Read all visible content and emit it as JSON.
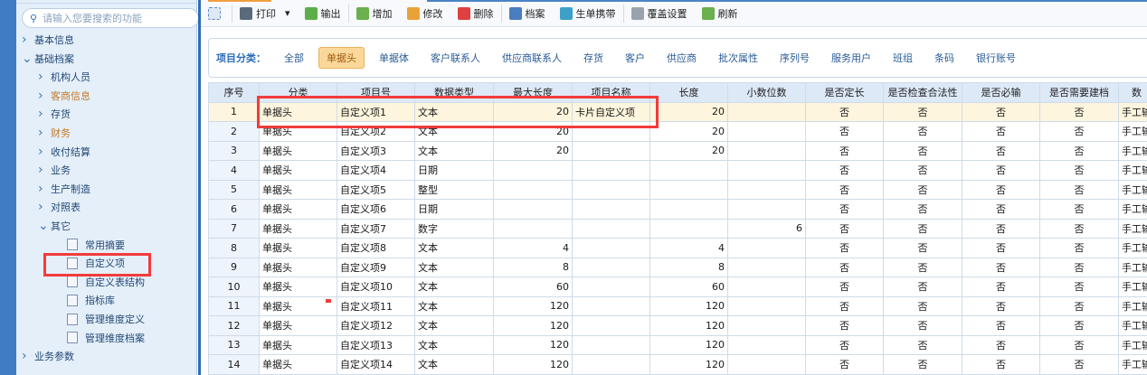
{
  "sidebar": {
    "search_placeholder": "请输入您要搜索的功能",
    "items": [
      {
        "label": "基本信息",
        "level": 0,
        "type": "collapsed"
      },
      {
        "label": "基础档案",
        "level": 0,
        "type": "expanded"
      },
      {
        "label": "机构人员",
        "level": 1,
        "type": "collapsed"
      },
      {
        "label": "客商信息",
        "level": 1,
        "type": "collapsed",
        "highlight": true
      },
      {
        "label": "存货",
        "level": 1,
        "type": "collapsed"
      },
      {
        "label": "财务",
        "level": 1,
        "type": "collapsed",
        "highlight": true
      },
      {
        "label": "收付结算",
        "level": 1,
        "type": "collapsed"
      },
      {
        "label": "业务",
        "level": 1,
        "type": "collapsed"
      },
      {
        "label": "生产制造",
        "level": 1,
        "type": "collapsed"
      },
      {
        "label": "对照表",
        "level": 1,
        "type": "collapsed"
      },
      {
        "label": "其它",
        "level": 1,
        "type": "expanded"
      },
      {
        "label": "常用摘要",
        "level": 2,
        "type": "leaf"
      },
      {
        "label": "自定义项",
        "level": 2,
        "type": "leaf",
        "selected": true
      },
      {
        "label": "自定义表结构",
        "level": 2,
        "type": "leaf"
      },
      {
        "label": "指标库",
        "level": 2,
        "type": "leaf"
      },
      {
        "label": "管理维度定义",
        "level": 2,
        "type": "leaf"
      },
      {
        "label": "管理维度档案",
        "level": 2,
        "type": "leaf"
      },
      {
        "label": "业务参数",
        "level": 0,
        "type": "collapsed"
      }
    ]
  },
  "toolbar": [
    {
      "label": "",
      "icon": "add-tab-icon",
      "color": "#dfe8f5"
    },
    {
      "label": "打印",
      "icon": "printer-icon",
      "color": "#5a6a7a",
      "dropdown": "▾"
    },
    {
      "label": "输出",
      "icon": "export-icon",
      "color": "#5cae4a"
    },
    {
      "label": "增加",
      "icon": "add-icon",
      "color": "#6ab04c"
    },
    {
      "label": "修改",
      "icon": "pencil-icon",
      "color": "#e8a23a"
    },
    {
      "label": "删除",
      "icon": "delete-icon",
      "color": "#e04040"
    },
    {
      "label": "档案",
      "icon": "archive-icon",
      "color": "#4a7cc0"
    },
    {
      "label": "生单携带",
      "icon": "carry-icon",
      "color": "#3ca0c8"
    },
    {
      "label": "覆盖设置",
      "icon": "gear-icon",
      "color": "#9aa3ad"
    },
    {
      "label": "刷新",
      "icon": "refresh-icon",
      "color": "#6ab04c"
    }
  ],
  "category": {
    "label": "项目分类：",
    "items": [
      "全部",
      "单据头",
      "单据体",
      "客户联系人",
      "供应商联系人",
      "存货",
      "客户",
      "供应商",
      "批次属性",
      "序列号",
      "服务用户",
      "班组",
      "条码",
      "银行账号"
    ],
    "selected": "单据头"
  },
  "table": {
    "columns": [
      "序号",
      "分类",
      "项目号",
      "数据类型",
      "最大长度",
      "项目名称",
      "长度",
      "小数位数",
      "是否定长",
      "是否检查合法性",
      "是否必输",
      "是否需要建档",
      "数"
    ],
    "rows": [
      [
        "1",
        "单据头",
        "自定义项1",
        "文本",
        "20",
        "卡片自定义项",
        "20",
        "",
        "否",
        "否",
        "否",
        "否",
        "手工输"
      ],
      [
        "2",
        "单据头",
        "自定义项2",
        "文本",
        "20",
        "",
        "20",
        "",
        "否",
        "否",
        "否",
        "否",
        "手工输"
      ],
      [
        "3",
        "单据头",
        "自定义项3",
        "文本",
        "20",
        "",
        "20",
        "",
        "否",
        "否",
        "否",
        "否",
        "手工输"
      ],
      [
        "4",
        "单据头",
        "自定义项4",
        "日期",
        "",
        "",
        "",
        "",
        "否",
        "否",
        "否",
        "否",
        "手工输"
      ],
      [
        "5",
        "单据头",
        "自定义项5",
        "整型",
        "",
        "",
        "",
        "",
        "否",
        "否",
        "否",
        "否",
        "手工输"
      ],
      [
        "6",
        "单据头",
        "自定义项6",
        "日期",
        "",
        "",
        "",
        "",
        "否",
        "否",
        "否",
        "否",
        "手工输"
      ],
      [
        "7",
        "单据头",
        "自定义项7",
        "数字",
        "",
        "",
        "",
        "6",
        "否",
        "否",
        "否",
        "否",
        "手工输"
      ],
      [
        "8",
        "单据头",
        "自定义项8",
        "文本",
        "4",
        "",
        "4",
        "",
        "否",
        "否",
        "否",
        "否",
        "手工输"
      ],
      [
        "9",
        "单据头",
        "自定义项9",
        "文本",
        "8",
        "",
        "8",
        "",
        "否",
        "否",
        "否",
        "否",
        "手工输"
      ],
      [
        "10",
        "单据头",
        "自定义项10",
        "文本",
        "60",
        "",
        "60",
        "",
        "否",
        "否",
        "否",
        "否",
        "手工输"
      ],
      [
        "11",
        "单据头",
        "自定义项11",
        "文本",
        "120",
        "",
        "120",
        "",
        "否",
        "否",
        "否",
        "否",
        "手工输"
      ],
      [
        "12",
        "单据头",
        "自定义项12",
        "文本",
        "120",
        "",
        "120",
        "",
        "否",
        "否",
        "否",
        "否",
        "手工输"
      ],
      [
        "13",
        "单据头",
        "自定义项13",
        "文本",
        "120",
        "",
        "120",
        "",
        "否",
        "否",
        "否",
        "否",
        "手工输"
      ],
      [
        "14",
        "单据头",
        "自定义项14",
        "文本",
        "120",
        "",
        "120",
        "",
        "否",
        "否",
        "否",
        "否",
        "手工输"
      ]
    ],
    "selected_row": 0
  }
}
